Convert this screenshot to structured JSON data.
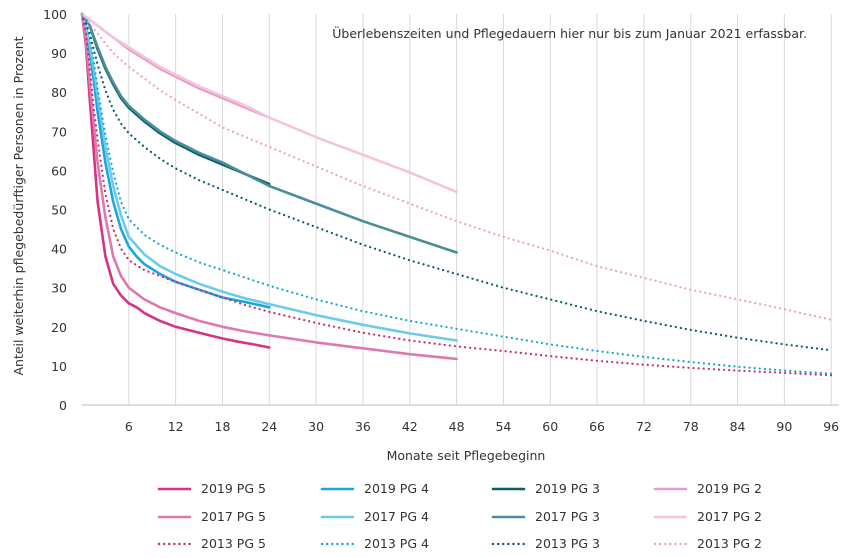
{
  "chart_data": {
    "type": "line",
    "title": "",
    "annotation": "Überlebenszeiten und Pflegedauern hier nur bis zum Januar 2021 erfassbar.",
    "xlabel": "Monate seit Pflegebeginn",
    "ylabel": "Anteil weiterhin pflegebedürftiger Personen in Prozent",
    "xlim": [
      0,
      97
    ],
    "ylim": [
      0,
      100
    ],
    "xticks": [
      6,
      12,
      18,
      24,
      30,
      36,
      42,
      48,
      54,
      60,
      66,
      72,
      78,
      84,
      90,
      96
    ],
    "yticks": [
      0,
      10,
      20,
      30,
      40,
      50,
      60,
      70,
      80,
      90,
      100
    ],
    "grid": "vertical",
    "legend_position": "bottom",
    "series": [
      {
        "name": "2019 PG 5",
        "color": "#d63384",
        "style": "solid",
        "width": 2.6,
        "x": [
          0,
          0.5,
          1,
          1.5,
          2,
          3,
          4,
          5,
          6,
          7,
          8,
          10,
          12,
          15,
          18,
          20,
          22,
          24
        ],
        "y": [
          100,
          92,
          78,
          65,
          52,
          38,
          31,
          28,
          26,
          25,
          23.5,
          21.5,
          20,
          18.5,
          17,
          16.2,
          15.5,
          14.7
        ]
      },
      {
        "name": "2019 PG 4",
        "color": "#1aa7dd",
        "style": "solid",
        "width": 2.6,
        "x": [
          0,
          0.5,
          1,
          1.5,
          2,
          3,
          4,
          5,
          6,
          7,
          8,
          10,
          12,
          15,
          18,
          21,
          24
        ],
        "y": [
          100,
          96,
          90,
          83,
          75,
          62,
          52,
          45,
          40.5,
          38,
          36,
          33.5,
          31.5,
          29.5,
          27.5,
          26.3,
          25
        ]
      },
      {
        "name": "2019 PG 3",
        "color": "#0e5f6e",
        "style": "solid",
        "width": 2.6,
        "x": [
          0,
          1,
          2,
          3,
          4,
          5,
          6,
          8,
          10,
          12,
          15,
          18,
          21,
          24
        ],
        "y": [
          100,
          97,
          91,
          86,
          82,
          78.5,
          76,
          72.5,
          69.5,
          67,
          64,
          61.5,
          59,
          56.5
        ]
      },
      {
        "name": "2019 PG 2",
        "color": "#e99ac7",
        "style": "solid",
        "width": 2.6,
        "x": [
          0,
          1,
          2,
          3,
          4,
          6,
          8,
          10,
          12,
          15,
          18,
          21,
          24
        ],
        "y": [
          100,
          98.5,
          97,
          95.5,
          94,
          91,
          88.5,
          86,
          84,
          81,
          78.5,
          76,
          73.5
        ]
      },
      {
        "name": "2017 PG 5",
        "color": "#de79ad",
        "style": "solid",
        "width": 2.6,
        "x": [
          0,
          0.5,
          1,
          1.5,
          2,
          3,
          4,
          5,
          6,
          8,
          10,
          12,
          15,
          18,
          21,
          24,
          30,
          36,
          42,
          48
        ],
        "y": [
          100,
          93,
          82,
          72,
          62,
          48,
          38,
          33,
          30,
          27,
          25,
          23.5,
          21.5,
          20,
          18.8,
          17.8,
          16,
          14.5,
          13,
          11.8
        ]
      },
      {
        "name": "2017 PG 4",
        "color": "#6ccbec",
        "style": "solid",
        "width": 2.6,
        "x": [
          0,
          0.5,
          1,
          1.5,
          2,
          3,
          4,
          5,
          6,
          8,
          10,
          12,
          15,
          18,
          21,
          24,
          30,
          36,
          42,
          48
        ],
        "y": [
          100,
          97,
          92,
          86,
          79,
          66,
          56,
          48.5,
          43,
          38.5,
          35.5,
          33.5,
          31,
          29,
          27.2,
          25.8,
          23,
          20.5,
          18.3,
          16.5
        ]
      },
      {
        "name": "2017 PG 3",
        "color": "#4a8e99",
        "style": "solid",
        "width": 2.6,
        "x": [
          0,
          1,
          2,
          3,
          4,
          5,
          6,
          8,
          10,
          12,
          15,
          18,
          21,
          24,
          30,
          36,
          42,
          48
        ],
        "y": [
          100,
          97,
          91.5,
          86.5,
          82.5,
          79,
          76.5,
          73,
          70,
          67.5,
          64.5,
          62,
          59,
          56,
          51.5,
          47,
          43,
          39
        ]
      },
      {
        "name": "2017 PG 2",
        "color": "#f2c4dd",
        "style": "solid",
        "width": 2.6,
        "x": [
          0,
          1,
          2,
          3,
          4,
          6,
          8,
          10,
          12,
          15,
          18,
          21,
          24,
          30,
          36,
          42,
          48
        ],
        "y": [
          100,
          98.5,
          97,
          95.5,
          94,
          91.5,
          89,
          86.5,
          84.5,
          81.5,
          79,
          76.5,
          73.5,
          68.5,
          64,
          59.5,
          54.5
        ]
      },
      {
        "name": "2013 PG 5",
        "color": "#c22e7c",
        "style": "dotted",
        "width": 2.2,
        "x": [
          0,
          0.5,
          1,
          1.5,
          2,
          3,
          4,
          5,
          6,
          8,
          10,
          12,
          15,
          18,
          21,
          24,
          30,
          36,
          42,
          48,
          54,
          60,
          66,
          72,
          78,
          84,
          90,
          96
        ],
        "y": [
          100,
          95,
          86,
          76,
          68,
          54,
          45,
          40,
          37,
          34.5,
          33,
          31.5,
          29.5,
          27.5,
          25.5,
          23.8,
          21,
          18.5,
          16.5,
          15,
          13.8,
          12.5,
          11.3,
          10.3,
          9.5,
          8.8,
          8.2,
          7.6
        ]
      },
      {
        "name": "2013 PG 4",
        "color": "#14a7d5",
        "style": "dotted",
        "width": 2.2,
        "x": [
          0,
          0.5,
          1,
          1.5,
          2,
          3,
          4,
          5,
          6,
          8,
          10,
          12,
          15,
          18,
          21,
          24,
          30,
          36,
          42,
          48,
          54,
          60,
          66,
          72,
          78,
          84,
          90,
          96
        ],
        "y": [
          100,
          98,
          94,
          88,
          81,
          69,
          59.5,
          52,
          47.5,
          43.5,
          41,
          39,
          36.5,
          34.5,
          32.5,
          30.5,
          27,
          24,
          21.5,
          19.5,
          17.5,
          15.5,
          13.8,
          12.3,
          11,
          9.8,
          8.8,
          8
        ]
      },
      {
        "name": "2013 PG 3",
        "color": "#0b5e6f",
        "style": "dotted",
        "width": 2.2,
        "x": [
          0,
          1,
          2,
          3,
          4,
          5,
          6,
          8,
          10,
          12,
          15,
          18,
          21,
          24,
          30,
          36,
          42,
          48,
          54,
          60,
          66,
          72,
          78,
          84,
          90,
          96
        ],
        "y": [
          100,
          95,
          87,
          80.5,
          75.5,
          72,
          69.5,
          66,
          63,
          60.5,
          57.5,
          55,
          52.5,
          50,
          45.5,
          41,
          37,
          33.5,
          30,
          27,
          24,
          21.5,
          19.2,
          17.2,
          15.5,
          14
        ]
      },
      {
        "name": "2013 PG 2",
        "color": "#ee9fcb",
        "style": "dotted",
        "width": 2.2,
        "x": [
          0,
          1,
          2,
          3,
          4,
          6,
          8,
          10,
          12,
          15,
          18,
          21,
          24,
          30,
          36,
          42,
          48,
          54,
          60,
          66,
          72,
          78,
          84,
          90,
          96
        ],
        "y": [
          100,
          97.5,
          95,
          92.5,
          90,
          86.5,
          83.5,
          80.5,
          78,
          74.5,
          71,
          68.5,
          66,
          61,
          56,
          51.5,
          47,
          43,
          39.5,
          35.5,
          32.5,
          29.5,
          27,
          24.5,
          21.8
        ]
      }
    ]
  }
}
